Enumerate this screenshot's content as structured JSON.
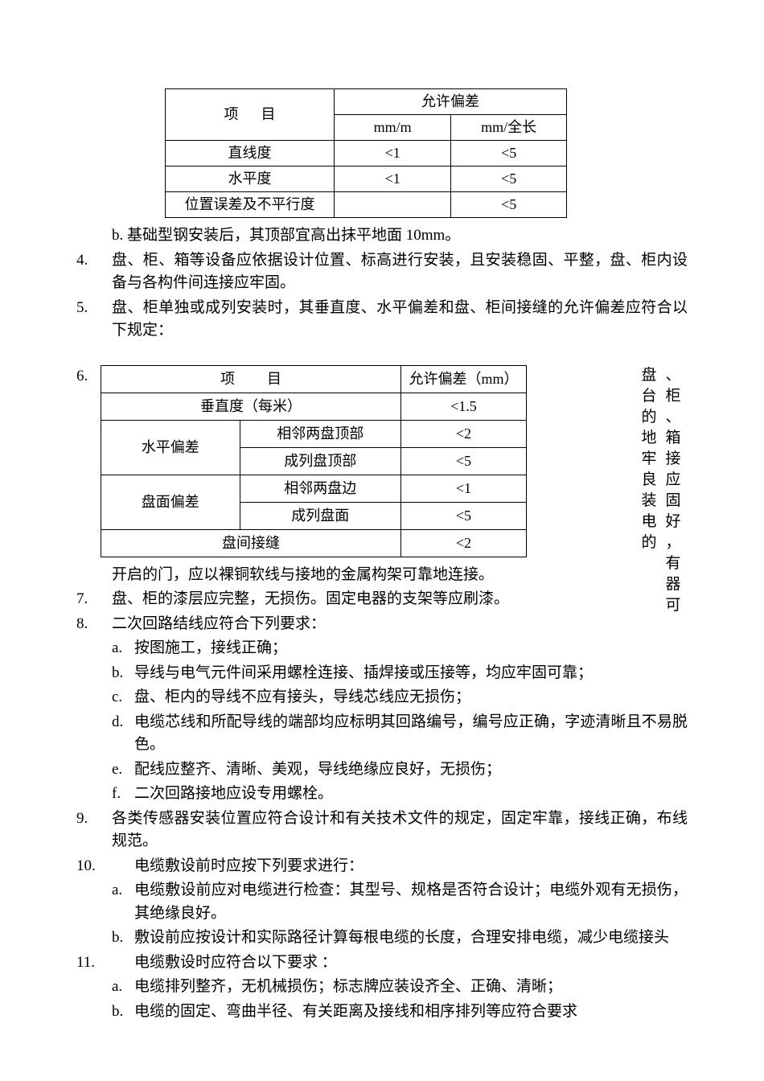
{
  "table1": {
    "header_item": "项目",
    "header_tolerance": "允许偏差",
    "sub_header_a": "mm/m",
    "sub_header_b": "mm/全长",
    "rows": [
      {
        "label": "直线度",
        "a": "<1",
        "b": "<5"
      },
      {
        "label": "水平度",
        "a": "<1",
        "b": "<5"
      },
      {
        "label": "位置误差及不平行度",
        "a": "",
        "b": "<5"
      }
    ]
  },
  "para_b": "b. 基础型钢安装后，其顶部宜高出抹平地面 10mm。",
  "item4_num": "4.",
  "item4": "盘、柜、箱等设备应依据设计位置、标高进行安装，且安装稳固、平整，盘、柜内设备与各构件间连接应牢固。",
  "item5_num": "5.",
  "item5": "盘、柜单独或成列安装时，其垂直度、水平偏差和盘、柜间接缝的允许偏差应符合以下规定：",
  "item6_num": "6.",
  "table2": {
    "header_item": "项目",
    "header_tol": "允许偏差（mm）",
    "row_vert_label": "垂直度（每米）",
    "row_vert_val": "<1.5",
    "row_hdev_label": "水平偏差",
    "row_hdev_sub1": "相邻两盘顶部",
    "row_hdev_val1": "<2",
    "row_hdev_sub2": "成列盘顶部",
    "row_hdev_val2": "<5",
    "row_face_label": "盘面偏差",
    "row_face_sub1": "相邻两盘边",
    "row_face_val1": "<1",
    "row_face_sub2": "成列盘面",
    "row_face_val2": "<5",
    "row_gap_label": "盘间接缝",
    "row_gap_val": "<2"
  },
  "item6_vert_left": "盘台的地牢良装电的",
  "item6_vert_right": "、柜、箱接应固好，有器可",
  "item6_tail": "开启的门，应以裸铜软线与接地的金属构架可靠地连接。",
  "item7_num": "7.",
  "item7": "盘、柜的漆层应完整，无损伤。固定电器的支架等应刷漆。",
  "item8_num": "8.",
  "item8": "二次回路结线应符合下列要求：",
  "item8_sub": [
    {
      "lbl": "a.",
      "text": "按图施工，接线正确；"
    },
    {
      "lbl": "b.",
      "text": "导线与电气元件间采用螺栓连接、插焊接或压接等，均应牢固可靠；"
    },
    {
      "lbl": "c.",
      "text": "盘、柜内的导线不应有接头，导线芯线应无损伤；"
    },
    {
      "lbl": "d.",
      "text": "电缆芯线和所配导线的端部均应标明其回路编号，编号应正确，字迹清晰且不易脱色。"
    },
    {
      "lbl": "e.",
      "text": "配线应整齐、清晰、美观，导线绝缘应良好，无损伤；"
    },
    {
      "lbl": "f.",
      "text": "二次回路接地应设专用螺栓。"
    }
  ],
  "item9_num": "9.",
  "item9": "各类传感器安装位置应符合设计和有关技术文件的规定，固定牢靠，接线正确，布线规范。",
  "item10_num": "10.",
  "item10": "电缆敷设前时应按下列要求进行：",
  "item10_sub": [
    {
      "lbl": "a.",
      "text": "电缆敷设前应对电缆进行检查：其型号、规格是否符合设计；电缆外观有无损伤，其绝缘良好。"
    },
    {
      "lbl": "b.",
      "text": "敷设前应按设计和实际路径计算每根电缆的长度，合理安排电缆，减少电缆接头"
    }
  ],
  "item11_num": "11.",
  "item11": "电缆敷设时应符合以下要求 ：",
  "item11_sub": [
    {
      "lbl": "a.",
      "text": "电缆排列整齐，无机械损伤；标志牌应装设齐全、正确、清晰；"
    },
    {
      "lbl": "b.",
      "text": "电缆的固定、弯曲半径、有关距离及接线和相序排列等应符合要求"
    }
  ]
}
